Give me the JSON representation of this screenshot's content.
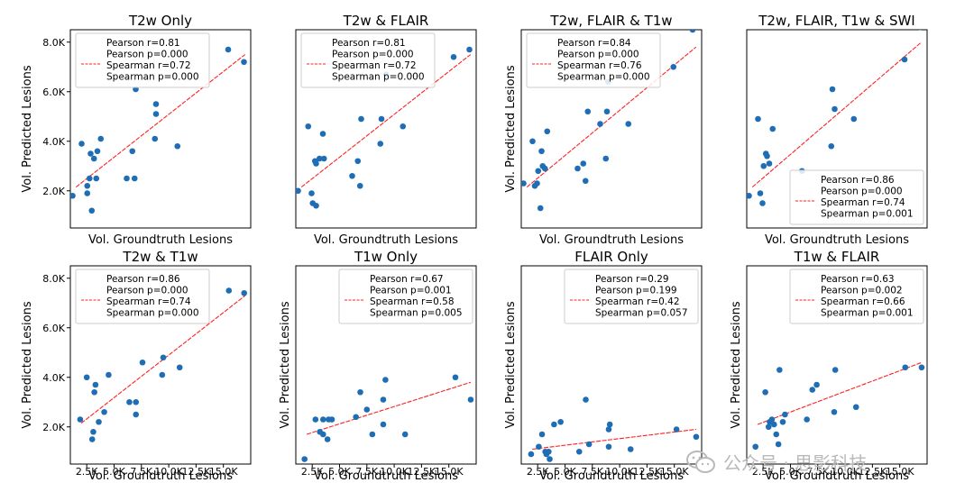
{
  "figure": {
    "watermark": "公众号 · 思影科技",
    "colors": {
      "points": "#1f6eb5",
      "fit": "#ff2020",
      "axis": "#000000",
      "watermark": "#b9b9b9"
    }
  },
  "chart_data": [
    {
      "type": "scatter",
      "title": "T2w Only",
      "xlabel": "Vol. Groundtruth Lesions",
      "ylabel": "Vol. Predicted Lesions",
      "xlim": [
        1500,
        17500
      ],
      "ylim": [
        500,
        8500
      ],
      "xticks": [],
      "xticklabels": [],
      "yticks": [
        2000,
        4000,
        6000,
        8000
      ],
      "yticklabels": [
        "2.0K",
        "4.0K",
        "6.0K",
        "8.0K"
      ],
      "legend": {
        "location": "upper-left",
        "entries": [
          "Pearson r=0.81",
          "Pearson p=0.000",
          "Spearman r=0.72",
          "Spearman p=0.000"
        ]
      },
      "fit": {
        "x": [
          2000,
          17000
        ],
        "y": [
          2150,
          7500
        ]
      },
      "points": [
        [
          1700,
          1800
        ],
        [
          2500,
          3900
        ],
        [
          3000,
          2200
        ],
        [
          3000,
          1900
        ],
        [
          3200,
          2500
        ],
        [
          3300,
          3500
        ],
        [
          3400,
          1200
        ],
        [
          3600,
          3300
        ],
        [
          3800,
          2500
        ],
        [
          3900,
          3600
        ],
        [
          4200,
          4100
        ],
        [
          6500,
          2500
        ],
        [
          7000,
          3600
        ],
        [
          7200,
          2500
        ],
        [
          7300,
          6100
        ],
        [
          9000,
          4100
        ],
        [
          9100,
          5500
        ],
        [
          9100,
          5100
        ],
        [
          11000,
          3800
        ],
        [
          15500,
          7700
        ],
        [
          16900,
          7200
        ]
      ]
    },
    {
      "type": "scatter",
      "title": "T2w & FLAIR",
      "xlabel": "Vol. Groundtruth Lesions",
      "ylabel": "",
      "xlim": [
        1500,
        17500
      ],
      "ylim": [
        500,
        8500
      ],
      "xticks": [],
      "xticklabels": [],
      "yticks": [],
      "yticklabels": [],
      "legend": {
        "location": "upper-left",
        "entries": [
          "Pearson r=0.81",
          "Pearson p=0.000",
          "Spearman r=0.72",
          "Spearman p=0.000"
        ]
      },
      "fit": {
        "x": [
          2000,
          17000
        ],
        "y": [
          2150,
          7500
        ]
      },
      "points": [
        [
          1700,
          2000
        ],
        [
          2600,
          4600
        ],
        [
          2900,
          1900
        ],
        [
          3000,
          1500
        ],
        [
          3200,
          3200
        ],
        [
          3300,
          1400
        ],
        [
          3300,
          3100
        ],
        [
          3600,
          3300
        ],
        [
          3900,
          4300
        ],
        [
          4000,
          3300
        ],
        [
          6500,
          2600
        ],
        [
          7000,
          3200
        ],
        [
          7200,
          2200
        ],
        [
          7300,
          4900
        ],
        [
          9000,
          3900
        ],
        [
          9100,
          4900
        ],
        [
          9500,
          6700
        ],
        [
          11000,
          4600
        ],
        [
          15500,
          7400
        ],
        [
          16900,
          7700
        ]
      ]
    },
    {
      "type": "scatter",
      "title": "T2w, FLAIR & T1w",
      "xlabel": "Vol. Groundtruth Lesions",
      "ylabel": "Vol. Predicted Lesions",
      "xlim": [
        1500,
        17500
      ],
      "ylim": [
        500,
        8500
      ],
      "xticks": [],
      "xticklabels": [],
      "yticks": [],
      "yticklabels": [],
      "legend": {
        "location": "upper-left",
        "entries": [
          "Pearson r=0.84",
          "Pearson p=0.000",
          "Spearman r=0.76",
          "Spearman p=0.000"
        ]
      },
      "fit": {
        "x": [
          2000,
          17000
        ],
        "y": [
          2150,
          7800
        ]
      },
      "points": [
        [
          1700,
          2300
        ],
        [
          2500,
          4000
        ],
        [
          2700,
          2200
        ],
        [
          2900,
          2300
        ],
        [
          3000,
          2800
        ],
        [
          3200,
          1300
        ],
        [
          3300,
          3600
        ],
        [
          3400,
          3000
        ],
        [
          3600,
          2900
        ],
        [
          3800,
          4400
        ],
        [
          6500,
          2900
        ],
        [
          7000,
          3100
        ],
        [
          7200,
          2400
        ],
        [
          7400,
          5200
        ],
        [
          8500,
          4700
        ],
        [
          9000,
          3300
        ],
        [
          9100,
          5200
        ],
        [
          9200,
          6400
        ],
        [
          11000,
          4700
        ],
        [
          15000,
          7000
        ],
        [
          16700,
          8500
        ]
      ]
    },
    {
      "type": "scatter",
      "title": "T2w, FLAIR, T1w & SWI",
      "xlabel": "Vol. Groundtruth Lesions",
      "ylabel": "",
      "xlim": [
        1500,
        17500
      ],
      "ylim": [
        500,
        8500
      ],
      "xticks": [],
      "xticklabels": [],
      "yticks": [],
      "yticklabels": [],
      "legend": {
        "location": "lower-right",
        "entries": [
          "Pearson r=0.86",
          "Pearson p=0.000",
          "Spearman r=0.74",
          "Spearman p=0.001"
        ]
      },
      "fit": {
        "x": [
          2000,
          17000
        ],
        "y": [
          2150,
          8000
        ]
      },
      "points": [
        [
          1700,
          1800
        ],
        [
          2500,
          4900
        ],
        [
          2700,
          1900
        ],
        [
          2900,
          1500
        ],
        [
          3000,
          3000
        ],
        [
          3200,
          3500
        ],
        [
          3300,
          3400
        ],
        [
          3500,
          3100
        ],
        [
          3800,
          4500
        ],
        [
          6400,
          2800
        ],
        [
          9000,
          3800
        ],
        [
          9100,
          6100
        ],
        [
          9300,
          5300
        ],
        [
          11000,
          4900
        ],
        [
          15500,
          7300
        ],
        [
          16900,
          8600
        ]
      ]
    },
    {
      "type": "scatter",
      "title": "T2w & T1w",
      "xlabel": "Vol. Groundtruth Lesions",
      "ylabel": "Vol. Predicted Lesions",
      "xlim": [
        1000,
        17500
      ],
      "ylim": [
        500,
        8500
      ],
      "xticks": [
        2500,
        5000,
        7500,
        10000,
        12500,
        15000
      ],
      "xticklabels": [
        "2.5K",
        "5.0K",
        "7.5K",
        "10.0K",
        "12.5K",
        "15.0K"
      ],
      "yticks": [
        2000,
        4000,
        6000,
        8000
      ],
      "yticklabels": [
        "2.0K",
        "4.0K",
        "6.0K",
        "8.0K"
      ],
      "legend": {
        "location": "upper-left",
        "entries": [
          "Pearson r=0.86",
          "Pearson p=0.000",
          "Spearman r=0.74",
          "Spearman p=0.000"
        ]
      },
      "fit": {
        "x": [
          2000,
          17000
        ],
        "y": [
          2150,
          7300
        ]
      },
      "points": [
        [
          1900,
          2300
        ],
        [
          2500,
          4000
        ],
        [
          3000,
          1500
        ],
        [
          3100,
          1800
        ],
        [
          3200,
          3400
        ],
        [
          3300,
          3700
        ],
        [
          3600,
          2200
        ],
        [
          4100,
          2600
        ],
        [
          4500,
          4100
        ],
        [
          6400,
          3000
        ],
        [
          7000,
          2500
        ],
        [
          7000,
          3000
        ],
        [
          7600,
          4600
        ],
        [
          9400,
          4100
        ],
        [
          9500,
          4800
        ],
        [
          11000,
          4400
        ],
        [
          15500,
          7500
        ],
        [
          16900,
          7400
        ]
      ]
    },
    {
      "type": "scatter",
      "title": "T1w Only",
      "xlabel": "Vol. Groundtruth Lesions",
      "ylabel": "Vol. Predicted Lesions",
      "xlim": [
        1000,
        17500
      ],
      "ylim": [
        500,
        8500
      ],
      "xticks": [
        2500,
        5000,
        7500,
        10000,
        12500,
        15000
      ],
      "xticklabels": [
        "2.5K",
        "5.0K",
        "7.5K",
        "10.0K",
        "12.5K",
        "15.0K"
      ],
      "yticks": [],
      "yticklabels": [],
      "legend": {
        "location": "upper-right",
        "entries": [
          "Pearson r=0.67",
          "Pearson p=0.001",
          "Spearman r=0.58",
          "Spearman p=0.005"
        ]
      },
      "fit": {
        "x": [
          2000,
          17000
        ],
        "y": [
          1700,
          3800
        ]
      },
      "points": [
        [
          1800,
          700
        ],
        [
          2800,
          2300
        ],
        [
          3200,
          1800
        ],
        [
          3500,
          1700
        ],
        [
          3500,
          2300
        ],
        [
          3900,
          1500
        ],
        [
          4000,
          2300
        ],
        [
          4300,
          2300
        ],
        [
          6500,
          2400
        ],
        [
          6900,
          3400
        ],
        [
          7500,
          2700
        ],
        [
          8000,
          1700
        ],
        [
          9000,
          2100
        ],
        [
          9000,
          3100
        ],
        [
          9200,
          3900
        ],
        [
          11000,
          1700
        ],
        [
          15600,
          4000
        ],
        [
          17000,
          3100
        ]
      ]
    },
    {
      "type": "scatter",
      "title": "FLAIR Only",
      "xlabel": "Vol. Groundtruth Lesions",
      "ylabel": "Vol. Predicted Lesions",
      "xlim": [
        1000,
        17500
      ],
      "ylim": [
        500,
        8500
      ],
      "xticks": [
        2500,
        5000,
        7500,
        10000,
        12500,
        15000
      ],
      "xticklabels": [
        "2.5K",
        "5.0K",
        "7.5K",
        "10.0K",
        "12.5K",
        "15.0K"
      ],
      "yticks": [],
      "yticklabels": [],
      "legend": {
        "location": "upper-right",
        "entries": [
          "Pearson r=0.29",
          "Pearson p=0.199",
          "Spearman r=0.42",
          "Spearman p=0.057"
        ]
      },
      "fit": {
        "x": [
          2000,
          17000
        ],
        "y": [
          1100,
          1900
        ]
      },
      "points": [
        [
          1900,
          900
        ],
        [
          2600,
          1200
        ],
        [
          2900,
          1700
        ],
        [
          3200,
          1000
        ],
        [
          3300,
          900
        ],
        [
          3500,
          1000
        ],
        [
          3600,
          700
        ],
        [
          4000,
          2100
        ],
        [
          4600,
          2200
        ],
        [
          6300,
          1000
        ],
        [
          6900,
          3100
        ],
        [
          7200,
          1300
        ],
        [
          9000,
          1200
        ],
        [
          9000,
          1900
        ],
        [
          9100,
          2100
        ],
        [
          11000,
          1100
        ],
        [
          15200,
          1900
        ],
        [
          17000,
          1600
        ]
      ]
    },
    {
      "type": "scatter",
      "title": "T1w & FLAIR",
      "xlabel": "Vol. Groundtruth Lesions",
      "ylabel": "Vol. Predicted Lesions",
      "xlim": [
        1000,
        17500
      ],
      "ylim": [
        500,
        8500
      ],
      "xticks": [
        2500,
        5000,
        7500,
        10000,
        12500,
        15000
      ],
      "xticklabels": [
        "2.5K",
        "5.0K",
        "7.5K",
        "10.0K",
        "12.5K",
        "15.0K"
      ],
      "yticks": [],
      "yticklabels": [],
      "legend": {
        "location": "upper-right",
        "entries": [
          "Pearson r=0.63",
          "Pearson p=0.002",
          "Spearman r=0.66",
          "Spearman p=0.001"
        ]
      },
      "fit": {
        "x": [
          2000,
          17000
        ],
        "y": [
          2100,
          4600
        ]
      },
      "points": [
        [
          1800,
          1200
        ],
        [
          2700,
          3400
        ],
        [
          3000,
          2000
        ],
        [
          3100,
          2200
        ],
        [
          3300,
          2300
        ],
        [
          3500,
          2100
        ],
        [
          3700,
          1700
        ],
        [
          3900,
          1300
        ],
        [
          4000,
          4300
        ],
        [
          4300,
          2200
        ],
        [
          4500,
          2500
        ],
        [
          6500,
          2300
        ],
        [
          7000,
          3500
        ],
        [
          7400,
          3700
        ],
        [
          9000,
          2600
        ],
        [
          9100,
          4300
        ],
        [
          11000,
          2800
        ],
        [
          15500,
          4400
        ],
        [
          17000,
          4400
        ]
      ]
    }
  ]
}
